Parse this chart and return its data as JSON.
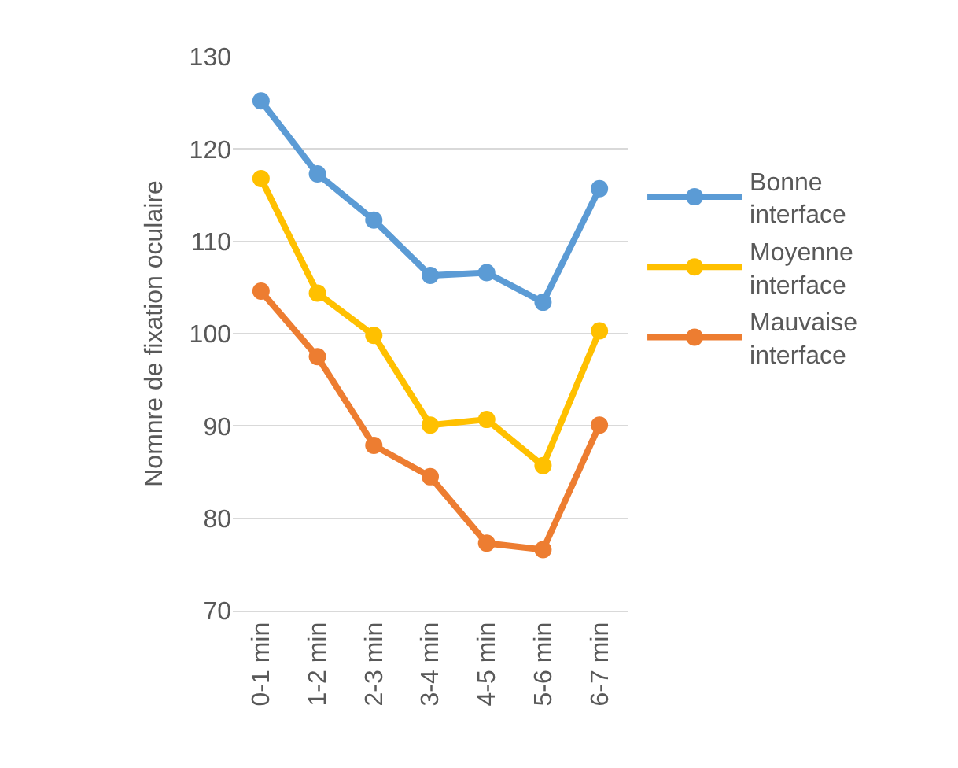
{
  "chart_data": {
    "type": "line",
    "ylabel": "Nomnre de fixation oculaire",
    "categories": [
      "0-1 min",
      "1-2 min",
      "2-3 min",
      "3-4 min",
      "4-5 min",
      "5-6 min",
      "6-7 min"
    ],
    "series": [
      {
        "name": "Bonne interface",
        "color": "#5b9bd5",
        "values": [
          125.2,
          117.3,
          112.3,
          106.3,
          106.6,
          103.4,
          115.7
        ]
      },
      {
        "name": "Moyenne interface",
        "color": "#ffc000",
        "values": [
          116.8,
          104.4,
          99.8,
          90.1,
          90.7,
          85.7,
          100.3
        ]
      },
      {
        "name": "Mauvaise interface",
        "color": "#ed7d31",
        "values": [
          104.6,
          97.5,
          87.9,
          84.5,
          77.3,
          76.6,
          90.1
        ]
      }
    ],
    "ylim": [
      70,
      130
    ],
    "yticks": [
      70,
      80,
      90,
      100,
      110,
      120,
      130
    ],
    "grid": "y",
    "legend": "right",
    "marker": "circle",
    "line_style": "solid"
  }
}
